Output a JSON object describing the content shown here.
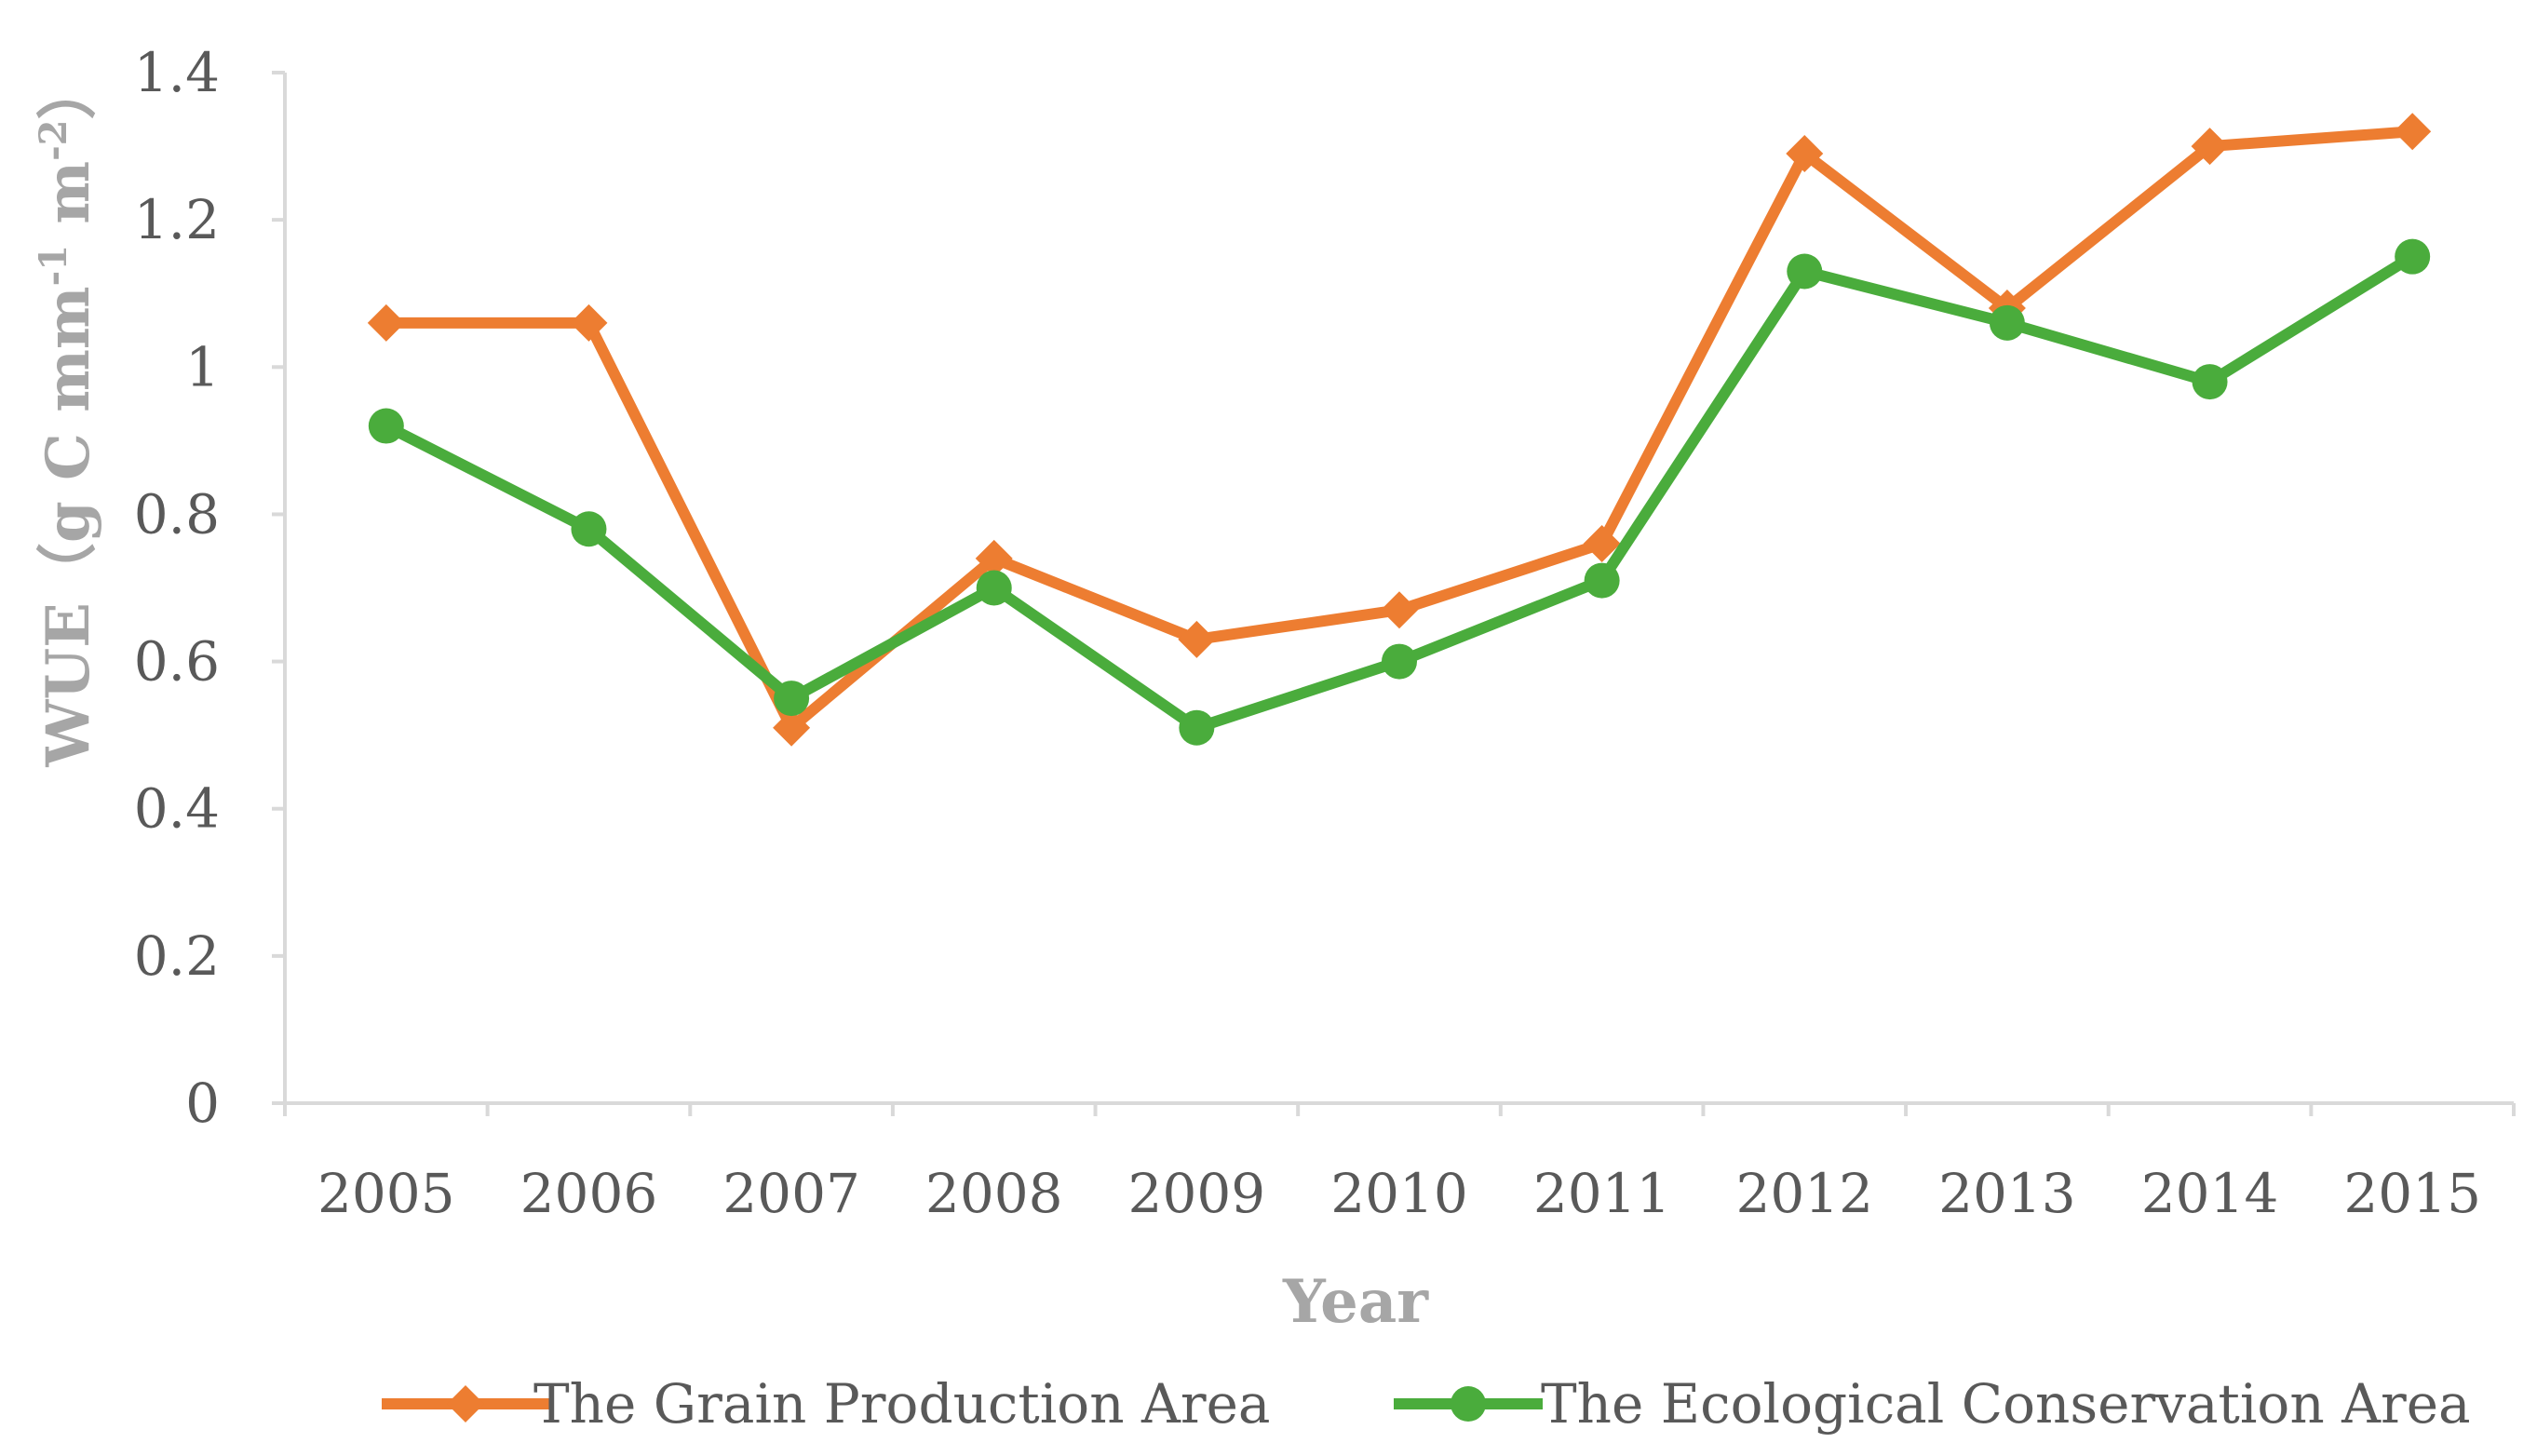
{
  "chart_data": {
    "type": "line",
    "title": "",
    "xlabel": "Year",
    "ylabel_parts": {
      "prefix": "WUE（g C mm",
      "sup1": "-1",
      "middle": " m",
      "sup2": "-2",
      "suffix": "）"
    },
    "categories": [
      "2005",
      "2006",
      "2007",
      "2008",
      "2009",
      "2010",
      "2011",
      "2012",
      "2013",
      "2014",
      "2015"
    ],
    "ylim": [
      0,
      1.4
    ],
    "yticks": [
      0,
      0.2,
      0.4,
      0.6,
      0.8,
      1,
      1.2,
      1.4
    ],
    "ytick_labels": [
      "0",
      "0.2",
      "0.4",
      "0.6",
      "0.8",
      "1",
      "1.2",
      "1.4"
    ],
    "grid": false,
    "legend_position": "bottom",
    "series": [
      {
        "name": "The Grain Production Area",
        "color": "#ed7d31",
        "marker": "diamond",
        "values": [
          1.06,
          1.06,
          0.51,
          0.74,
          0.63,
          0.67,
          0.76,
          1.29,
          1.08,
          1.3,
          1.32
        ]
      },
      {
        "name": "The Ecological Conservation Area",
        "color": "#4aac3c",
        "marker": "circle",
        "values": [
          0.92,
          0.78,
          0.55,
          0.7,
          0.51,
          0.6,
          0.71,
          1.13,
          1.06,
          0.98,
          1.15
        ]
      }
    ]
  },
  "colors": {
    "axis": "#d9d9d9",
    "tick_text": "#595959",
    "axis_title": "#a6a6a6"
  }
}
